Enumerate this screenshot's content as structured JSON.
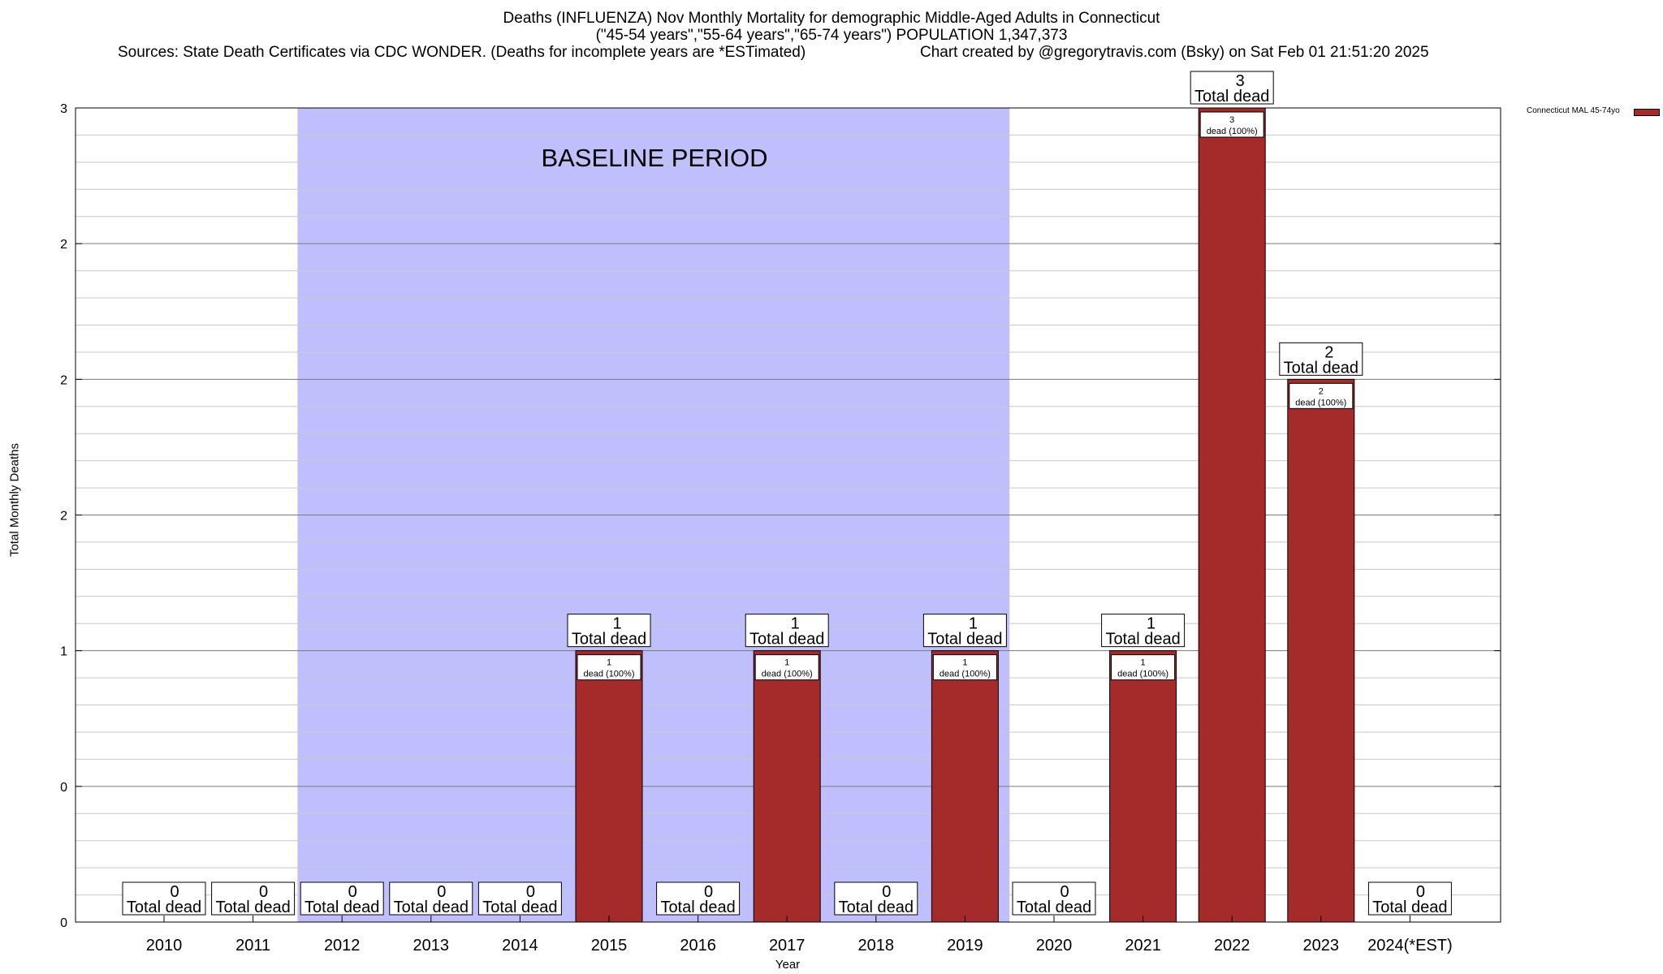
{
  "chart_data": {
    "type": "bar",
    "title_line1": "Deaths (INFLUENZA) Nov Monthly Mortality for demographic Middle-Aged Adults in Connecticut",
    "title_line2": "(\"45-54 years\",\"55-64 years\",\"65-74 years\") POPULATION 1,347,373",
    "sources": "Sources: State Death Certificates via CDC WONDER. (Deaths for incomplete years are *ESTimated)",
    "credit": "Chart created by @gregorytravis.com (Bsky) on Sat Feb 01 21:51:20 2025",
    "xlabel": "Year",
    "ylabel": "Total Monthly Deaths",
    "ylim": [
      0,
      3
    ],
    "yticks": [
      0,
      0.5,
      1,
      1.5,
      2,
      2.5,
      3
    ],
    "ytick_labels": [
      "0",
      "0",
      "1",
      "2",
      "2",
      "2",
      "3"
    ],
    "categories": [
      "2010",
      "2011",
      "2012",
      "2013",
      "2014",
      "2015",
      "2016",
      "2017",
      "2018",
      "2019",
      "2020",
      "2021",
      "2022",
      "2023",
      "2024(*EST)"
    ],
    "series": [
      {
        "name": "Connecticut MAL 45-74yo",
        "color": "#a52a2a",
        "values": [
          0,
          0,
          0,
          0,
          0,
          1,
          0,
          1,
          0,
          1,
          0,
          1,
          3,
          2,
          0
        ]
      }
    ],
    "total_label_text": "Total dead",
    "inner_label_text": "dead (100%)",
    "baseline_label": "BASELINE PERIOD",
    "baseline_range": [
      "2012",
      "2019"
    ],
    "baseline_color": "#bfbffd",
    "grid": true,
    "legend": "top-right"
  }
}
